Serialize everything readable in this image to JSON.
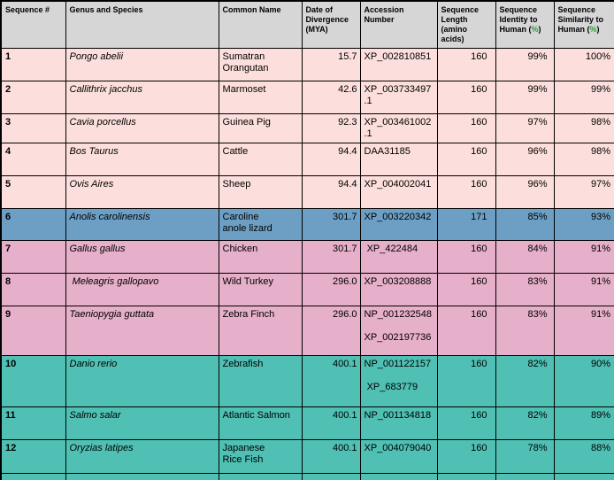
{
  "colors": {
    "header_bg": "#d6d6d6",
    "pink": "#fcdfdc",
    "blue": "#6d9fc4",
    "mauve": "#e6afca",
    "teal": "#4fc0b3",
    "border": "#000000",
    "percent_green": "#2f9e3f"
  },
  "chart_data": {
    "type": "table",
    "title": "Sequence comparison to human across species",
    "columns": [
      {
        "key": "seq",
        "label": "Sequence #"
      },
      {
        "key": "genus",
        "label": "Genus and Species"
      },
      {
        "key": "common",
        "label": "Common Name"
      },
      {
        "key": "mya",
        "label": "Date of\nDivergence\n(MYA)"
      },
      {
        "key": "accession",
        "label": "Accession Number"
      },
      {
        "key": "length",
        "label": "Sequence\nLength\n(amino acids)"
      },
      {
        "key": "identity",
        "label": "Sequence\nIdentity to\nHuman",
        "unit": "%"
      },
      {
        "key": "similarity",
        "label": "Sequence\nSimilarity to\nHuman",
        "unit": "%"
      }
    ],
    "rows": [
      {
        "seq": "1",
        "genus": "Pongo abelii",
        "common": "Sumatran\nOrangutan",
        "mya": "15.7",
        "accession": "XP_002810851",
        "length": "160",
        "identity": "99%",
        "similarity": "100%",
        "theme": "pink"
      },
      {
        "seq": "2",
        "genus": "Callithrix jacchus",
        "common": "Marmoset",
        "mya": "42.6",
        "accession": "XP_003733497.1",
        "length": "160",
        "identity": "99%",
        "similarity": "99%",
        "theme": "pink"
      },
      {
        "seq": "3",
        "genus": "Cavia porcellus",
        "common": "Guinea Pig",
        "mya": "92.3",
        "accession": "XP_003461002.1",
        "length": "160",
        "identity": "97%",
        "similarity": "98%",
        "theme": "pink"
      },
      {
        "seq": "4",
        "genus": "Bos Taurus",
        "common": "Cattle",
        "mya": "94.4",
        "accession": "DAA31185",
        "length": "160",
        "identity": "96%",
        "similarity": "98%",
        "theme": "pink"
      },
      {
        "seq": "5",
        "genus": "Ovis Aires",
        "common": "Sheep",
        "mya": "94.4",
        "accession": "XP_004002041",
        "length": "160",
        "identity": "96%",
        "similarity": "97%",
        "theme": "pink"
      },
      {
        "seq": "6",
        "genus": "Anolis carolinensis",
        "common": "Caroline\nanole lizard",
        "mya": "301.7",
        "accession": "XP_003220342",
        "length": "171",
        "identity": "85%",
        "similarity": "93%",
        "theme": "blue"
      },
      {
        "seq": "7",
        "genus": "Gallus gallus",
        "common": "Chicken",
        "mya": "301.7",
        "accession": " XP_422484",
        "length": "160",
        "identity": "84%",
        "similarity": "91%",
        "theme": "mauve"
      },
      {
        "seq": "8",
        "genus": " Meleagris gallopavo",
        "common": "Wild Turkey",
        "mya": "296.0",
        "accession": "XP_003208888",
        "length": "160",
        "identity": "83%",
        "similarity": "91%",
        "theme": "mauve"
      },
      {
        "seq": "9",
        "genus": "Taeniopygia guttata",
        "common": "Zebra Finch",
        "mya": "296.0",
        "accession": "NP_001232548\n\nXP_002197736",
        "length": "160",
        "identity": "83%",
        "similarity": "91%",
        "theme": "mauve"
      },
      {
        "seq": "10",
        "genus": "Danio rerio",
        "common": "Zebrafish",
        "mya": "400.1",
        "accession": "NP_001122157\n\n XP_683779",
        "length": "160",
        "identity": "82%",
        "similarity": "90%",
        "theme": "teal"
      },
      {
        "seq": "11",
        "genus": "Salmo salar",
        "common": "Atlantic Salmon",
        "mya": "400.1",
        "accession": "NP_001134818",
        "length": "160",
        "identity": "82%",
        "similarity": "89%",
        "theme": "teal"
      },
      {
        "seq": "12",
        "genus": "Oryzias latipes",
        "common": "Japanese\nRice Fish",
        "mya": "400.1",
        "accession": "XP_004079040",
        "length": "160",
        "identity": "78%",
        "similarity": "88%",
        "theme": "teal"
      }
    ],
    "partial_row_theme": "teal"
  }
}
